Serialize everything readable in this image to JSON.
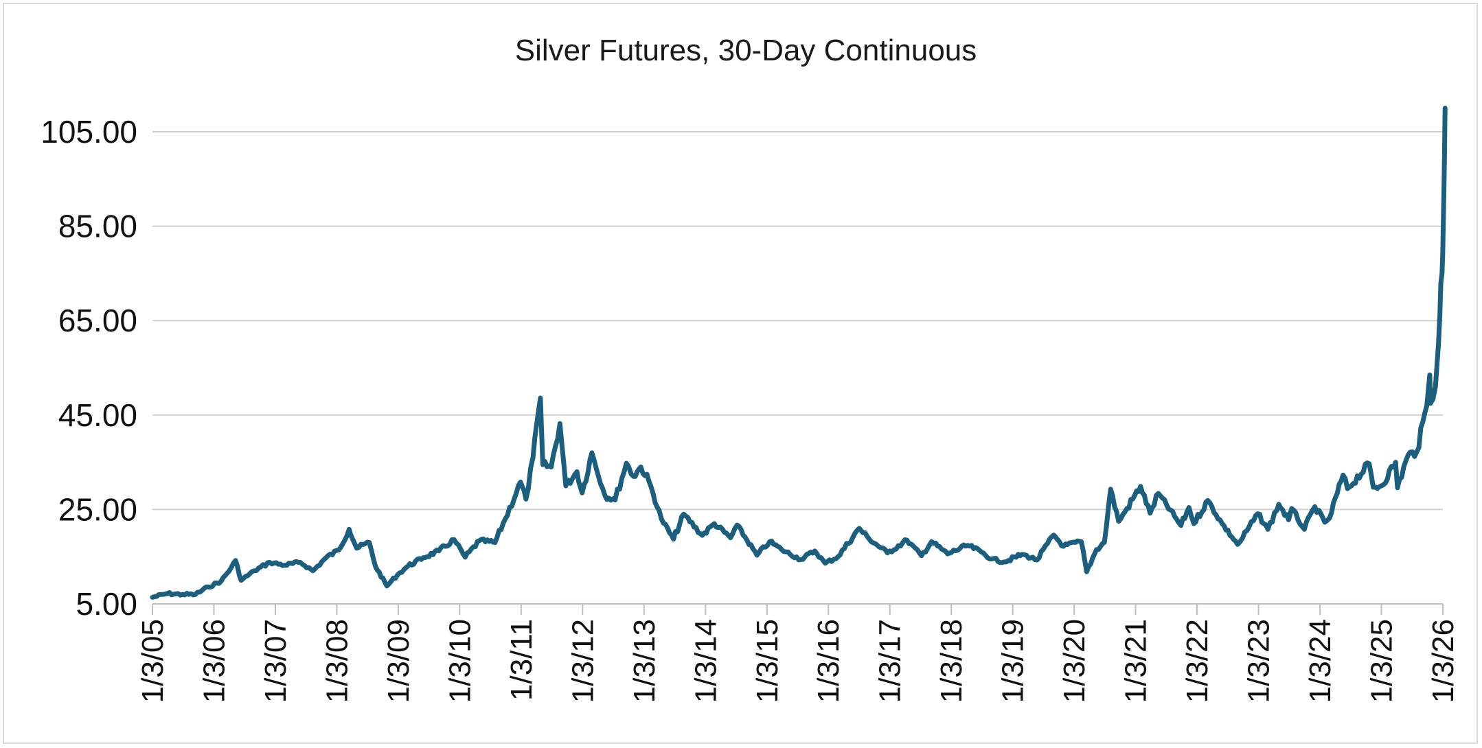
{
  "chart_data": {
    "type": "line",
    "title": "Silver Futures, 30-Day Continuous",
    "xlabel": "",
    "ylabel": "",
    "ylim": [
      5,
      110
    ],
    "y_ticks": [
      "5.00",
      "25.00",
      "45.00",
      "65.00",
      "85.00",
      "105.00"
    ],
    "x_ticks": [
      "1/3/05",
      "1/3/06",
      "1/3/07",
      "1/3/08",
      "1/3/09",
      "1/3/10",
      "1/3/11",
      "1/3/12",
      "1/3/13",
      "1/3/14",
      "1/3/15",
      "1/3/16",
      "1/3/17",
      "1/3/18",
      "1/3/19",
      "1/3/20",
      "1/3/21",
      "1/3/22",
      "1/3/23",
      "1/3/24",
      "1/3/25",
      "1/3/26"
    ],
    "grid": true,
    "legend": "none",
    "line_color": "#1b5e7e",
    "series": [
      {
        "points": [
          [
            "2005-01-03",
            6.4
          ],
          [
            "2005-04-01",
            7.2
          ],
          [
            "2005-07-01",
            7.0
          ],
          [
            "2005-09-15",
            7.0
          ],
          [
            "2005-12-01",
            8.6
          ],
          [
            "2006-02-15",
            9.8
          ],
          [
            "2006-04-15",
            12.6
          ],
          [
            "2006-05-12",
            14.2
          ],
          [
            "2006-06-14",
            10.0
          ],
          [
            "2006-09-01",
            12.0
          ],
          [
            "2006-12-01",
            13.8
          ],
          [
            "2007-03-01",
            13.2
          ],
          [
            "2007-06-01",
            13.8
          ],
          [
            "2007-08-15",
            12.0
          ],
          [
            "2007-11-01",
            14.8
          ],
          [
            "2008-01-15",
            16.4
          ],
          [
            "2008-03-17",
            20.8
          ],
          [
            "2008-05-01",
            16.8
          ],
          [
            "2008-07-15",
            18.0
          ],
          [
            "2008-08-20",
            13.0
          ],
          [
            "2008-10-27",
            8.8
          ],
          [
            "2008-12-31",
            11.2
          ],
          [
            "2009-03-01",
            13.0
          ],
          [
            "2009-06-01",
            14.8
          ],
          [
            "2009-09-01",
            16.2
          ],
          [
            "2009-12-01",
            18.6
          ],
          [
            "2010-02-05",
            14.9
          ],
          [
            "2010-05-01",
            18.4
          ],
          [
            "2010-08-01",
            18.0
          ],
          [
            "2010-10-01",
            23.0
          ],
          [
            "2010-12-31",
            30.8
          ],
          [
            "2011-02-01",
            27.2
          ],
          [
            "2011-03-15",
            36.0
          ],
          [
            "2011-04-28",
            48.6
          ],
          [
            "2011-05-12",
            34.5
          ],
          [
            "2011-07-01",
            34.0
          ],
          [
            "2011-08-22",
            43.2
          ],
          [
            "2011-09-26",
            30.0
          ],
          [
            "2011-12-01",
            33.0
          ],
          [
            "2012-01-01",
            28.5
          ],
          [
            "2012-02-28",
            37.0
          ],
          [
            "2012-05-15",
            28.0
          ],
          [
            "2012-07-15",
            27.0
          ],
          [
            "2012-09-20",
            34.8
          ],
          [
            "2012-11-01",
            32.0
          ],
          [
            "2012-12-15",
            34.0
          ],
          [
            "2013-02-01",
            31.0
          ],
          [
            "2013-04-16",
            23.0
          ],
          [
            "2013-06-27",
            18.7
          ],
          [
            "2013-08-27",
            24.0
          ],
          [
            "2013-12-15",
            19.5
          ],
          [
            "2014-02-25",
            22.0
          ],
          [
            "2014-06-01",
            19.0
          ],
          [
            "2014-07-10",
            21.7
          ],
          [
            "2014-11-05",
            15.3
          ],
          [
            "2015-01-20",
            18.2
          ],
          [
            "2015-04-01",
            16.5
          ],
          [
            "2015-07-24",
            14.4
          ],
          [
            "2015-10-15",
            16.2
          ],
          [
            "2015-12-16",
            13.6
          ],
          [
            "2016-03-01",
            15.0
          ],
          [
            "2016-07-05",
            21.0
          ],
          [
            "2016-09-01",
            18.8
          ],
          [
            "2016-12-20",
            15.8
          ],
          [
            "2017-04-15",
            18.5
          ],
          [
            "2017-07-10",
            15.2
          ],
          [
            "2017-09-08",
            18.2
          ],
          [
            "2017-12-12",
            15.6
          ],
          [
            "2018-04-11",
            17.4
          ],
          [
            "2018-07-01",
            16.0
          ],
          [
            "2018-09-01",
            14.5
          ],
          [
            "2018-11-14",
            13.9
          ],
          [
            "2019-03-01",
            15.5
          ],
          [
            "2019-05-28",
            14.3
          ],
          [
            "2019-09-04",
            19.6
          ],
          [
            "2019-11-01",
            17.2
          ],
          [
            "2020-02-15",
            18.2
          ],
          [
            "2020-03-18",
            11.8
          ],
          [
            "2020-05-15",
            16.5
          ],
          [
            "2020-07-01",
            18.0
          ],
          [
            "2020-08-07",
            29.3
          ],
          [
            "2020-09-24",
            22.5
          ],
          [
            "2020-11-01",
            24.5
          ],
          [
            "2021-02-01",
            29.9
          ],
          [
            "2021-03-30",
            24.2
          ],
          [
            "2021-05-18",
            28.4
          ],
          [
            "2021-09-29",
            21.6
          ],
          [
            "2021-11-16",
            25.4
          ],
          [
            "2021-12-15",
            22.0
          ],
          [
            "2022-03-08",
            26.9
          ],
          [
            "2022-06-01",
            22.0
          ],
          [
            "2022-09-01",
            17.6
          ],
          [
            "2022-10-01",
            19.0
          ],
          [
            "2022-12-30",
            24.1
          ],
          [
            "2023-02-28",
            20.8
          ],
          [
            "2023-05-04",
            26.1
          ],
          [
            "2023-07-01",
            22.8
          ],
          [
            "2023-07-19",
            25.2
          ],
          [
            "2023-10-03",
            20.8
          ],
          [
            "2023-12-04",
            25.6
          ],
          [
            "2024-02-01",
            22.3
          ],
          [
            "2024-03-01",
            23.2
          ],
          [
            "2024-05-20",
            32.3
          ],
          [
            "2024-06-15",
            29.4
          ],
          [
            "2024-10-22",
            34.7
          ],
          [
            "2024-11-15",
            29.7
          ],
          [
            "2025-01-02",
            30.0
          ],
          [
            "2025-03-28",
            35.0
          ],
          [
            "2025-04-08",
            29.6
          ],
          [
            "2025-06-10",
            36.5
          ],
          [
            "2025-08-01",
            37.2
          ],
          [
            "2025-09-30",
            47.0
          ],
          [
            "2025-10-17",
            53.5
          ],
          [
            "2025-10-22",
            47.5
          ],
          [
            "2025-11-20",
            51.0
          ],
          [
            "2025-12-08",
            60.0
          ],
          [
            "2025-12-16",
            66.0
          ],
          [
            "2025-12-22",
            73.0
          ],
          [
            "2025-12-29",
            75.0
          ],
          [
            "2026-01-02",
            79.0
          ],
          [
            "2026-01-06",
            86.0
          ],
          [
            "2026-01-09",
            92.0
          ],
          [
            "2026-01-13",
            100.0
          ],
          [
            "2026-01-16",
            110.0
          ]
        ]
      }
    ]
  }
}
